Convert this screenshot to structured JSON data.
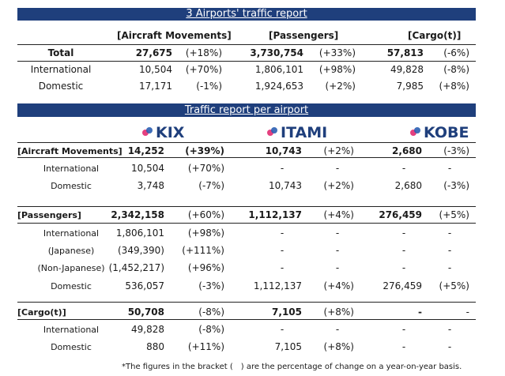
{
  "summary": {
    "title": "3 Airports' traffic report",
    "headers": [
      "[Aircraft Movements]",
      "[Passengers]",
      "[Cargo(t)]"
    ],
    "rows": [
      {
        "label": "Total",
        "am": "27,675",
        "am_chg": "(+18%)",
        "px": "3,730,754",
        "px_chg": "(+33%)",
        "cg": "57,813",
        "cg_chg": "(-6%)"
      },
      {
        "label": "International",
        "am": "10,504",
        "am_chg": "(+70%)",
        "px": "1,806,101",
        "px_chg": "(+98%)",
        "cg": "49,828",
        "cg_chg": "(-8%)"
      },
      {
        "label": "Domestic",
        "am": "17,171",
        "am_chg": "(-1%)",
        "px": "1,924,653",
        "px_chg": "(+2%)",
        "cg": "7,985",
        "cg_chg": "(+8%)"
      }
    ]
  },
  "per_airport": {
    "title": "Traffic report per airport",
    "airports": [
      "KIX",
      "ITAMI",
      "KOBE"
    ],
    "sections": [
      {
        "header": "[Aircraft Movements]",
        "total": {
          "kix": "14,252",
          "kix_chg": "(+39%)",
          "itm": "10,743",
          "itm_chg": "(+2%)",
          "kob": "2,680",
          "kob_chg": "(-3%)"
        },
        "rows": [
          {
            "label": "International",
            "kix": "10,504",
            "kix_chg": "(+70%)",
            "itm": "-",
            "itm_chg": "-",
            "kob": "-",
            "kob_chg": "-"
          },
          {
            "label": "Domestic",
            "kix": "3,748",
            "kix_chg": "(-7%)",
            "itm": "10,743",
            "itm_chg": "(+2%)",
            "kob": "2,680",
            "kob_chg": "(-3%)"
          }
        ]
      },
      {
        "header": "[Passengers]",
        "total": {
          "kix": "2,342,158",
          "kix_chg": "(+60%)",
          "itm": "1,112,137",
          "itm_chg": "(+4%)",
          "kob": "276,459",
          "kob_chg": "(+5%)"
        },
        "rows": [
          {
            "label": "International",
            "kix": "1,806,101",
            "kix_chg": "(+98%)",
            "itm": "-",
            "itm_chg": "-",
            "kob": "-",
            "kob_chg": "-"
          },
          {
            "label": "(Japanese)",
            "kix": "(349,390)",
            "kix_chg": "(+111%)",
            "itm": "-",
            "itm_chg": "-",
            "kob": "-",
            "kob_chg": "-"
          },
          {
            "label": "(Non-Japanese)",
            "kix": "(1,452,217)",
            "kix_chg": "(+96%)",
            "itm": "-",
            "itm_chg": "-",
            "kob": "-",
            "kob_chg": "-"
          },
          {
            "label": "Domestic",
            "kix": "536,057",
            "kix_chg": "(-3%)",
            "itm": "1,112,137",
            "itm_chg": "(+4%)",
            "kob": "276,459",
            "kob_chg": "(+5%)"
          }
        ]
      },
      {
        "header": "[Cargo(t)]",
        "total": {
          "kix": "50,708",
          "kix_chg": "(-8%)",
          "itm": "7,105",
          "itm_chg": "(+8%)",
          "kob": "-",
          "kob_chg": "-"
        },
        "rows": [
          {
            "label": "International",
            "kix": "49,828",
            "kix_chg": "(-8%)",
            "itm": "-",
            "itm_chg": "-",
            "kob": "-",
            "kob_chg": "-"
          },
          {
            "label": "Domestic",
            "kix": "880",
            "kix_chg": "(+11%)",
            "itm": "7,105",
            "itm_chg": "(+8%)",
            "kob": "-",
            "kob_chg": "-"
          }
        ]
      }
    ]
  },
  "footnote": "*The figures in the bracket (　) are the percentage of change on a year-on-year basis.",
  "colors": {
    "banner": "#1f3f7c",
    "logo_text": "#1f3f7c",
    "pin_pink": "#e4407f",
    "pin_blue": "#2b5fb3"
  },
  "icons": [
    "airport-pin-icon"
  ]
}
